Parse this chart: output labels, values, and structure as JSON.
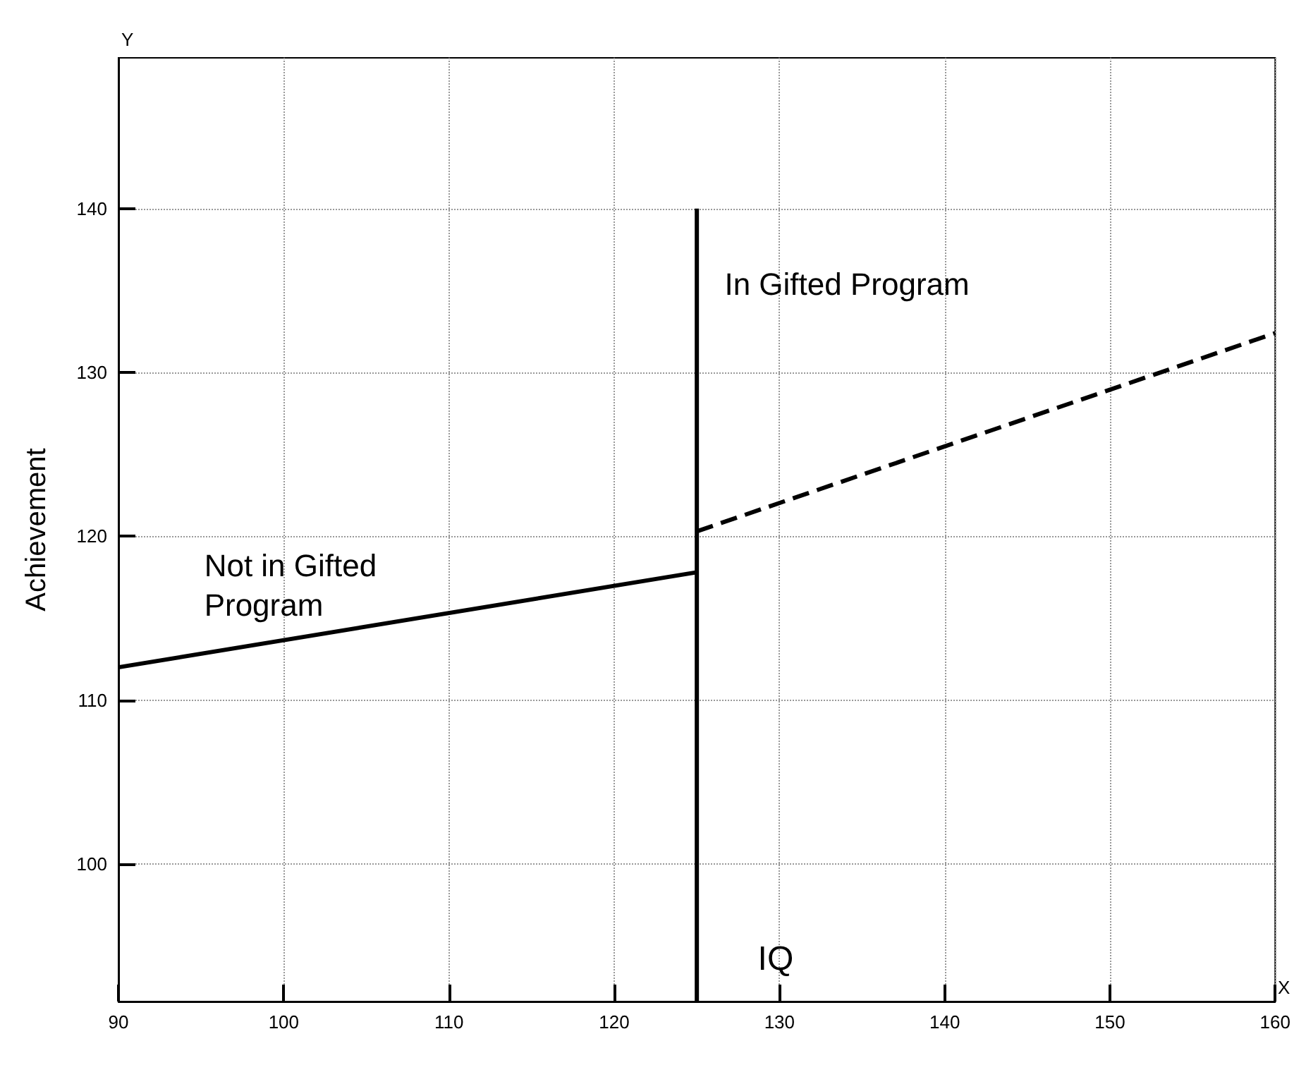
{
  "chart_data": {
    "type": "line",
    "xlabel": "IQ",
    "ylabel": "Achievement",
    "xlim": [
      90,
      160
    ],
    "xticks": [
      90,
      100,
      110,
      120,
      130,
      140,
      150,
      160
    ],
    "ylim": [
      91.6,
      149.2
    ],
    "yticks": [
      100,
      110,
      120,
      130,
      140
    ],
    "grid": true,
    "marker": "none",
    "series": [
      {
        "x": [
          90,
          125
        ],
        "values": [
          112,
          117.8
        ],
        "line_style": "solid",
        "color": "#000000"
      },
      {
        "x": [
          125,
          160
        ],
        "values": [
          120.3,
          132.4
        ],
        "line_style": "dashed",
        "color": "#000000"
      },
      {
        "x": [
          125,
          125
        ],
        "values": [
          91.6,
          140
        ],
        "line_style": "solid",
        "color": "#000000"
      }
    ],
    "annotations": [
      "Not in Gifted Program",
      "In Gifted Program",
      "Y",
      "X"
    ]
  }
}
